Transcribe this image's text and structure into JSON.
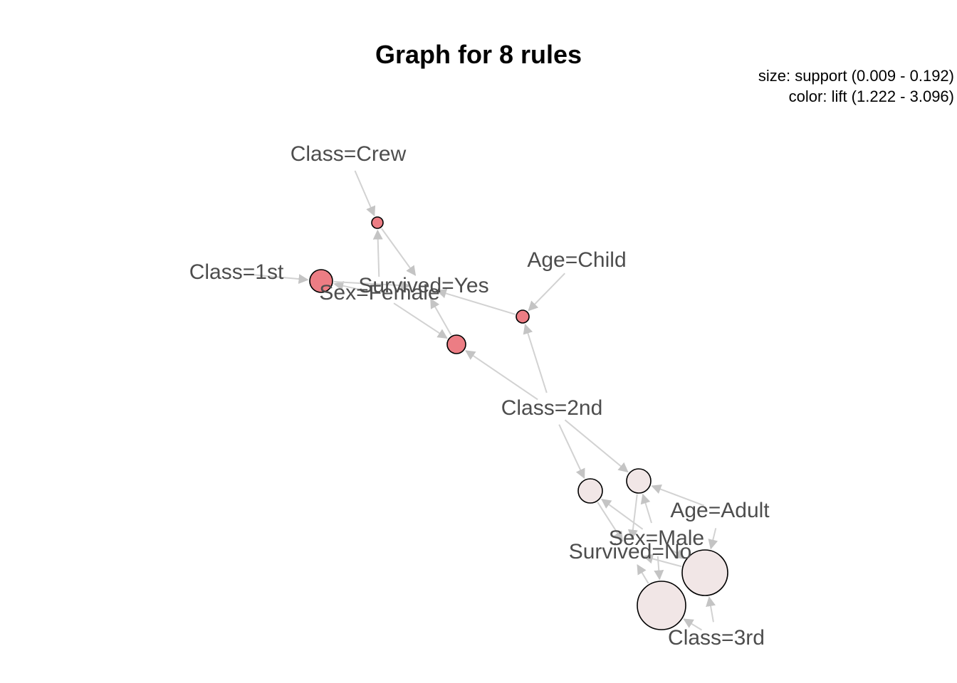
{
  "title": "Graph for 8 rules",
  "legend": {
    "size": "size: support (0.009 - 0.192)",
    "color": "color: lift (1.222 - 3.096)"
  },
  "colors": {
    "edge": "#d2d2d2",
    "label": "#4d4d4d",
    "low_lift": "#f1e6e6",
    "high_lift": "#ec7d84"
  },
  "items": [
    {
      "id": "crew",
      "label": "Class=Crew"
    },
    {
      "id": "first",
      "label": "Class=1st"
    },
    {
      "id": "survived_yes",
      "label": "Survived=Yes"
    },
    {
      "id": "sex_female",
      "label": "Sex=Female"
    },
    {
      "id": "age_child",
      "label": "Age=Child"
    },
    {
      "id": "second",
      "label": "Class=2nd"
    },
    {
      "id": "age_adult",
      "label": "Age=Adult"
    },
    {
      "id": "sex_male",
      "label": "Sex=Male"
    },
    {
      "id": "survived_no",
      "label": "Survived=No"
    },
    {
      "id": "third",
      "label": "Class=3rd"
    }
  ],
  "rules": [
    {
      "id": "r1",
      "lhs": [
        "crew",
        "sex_female"
      ],
      "rhs": "survived_yes",
      "level": "high"
    },
    {
      "id": "r2",
      "lhs": [
        "first",
        "sex_female"
      ],
      "rhs": "survived_yes",
      "level": "high"
    },
    {
      "id": "r3",
      "lhs": [
        "second",
        "sex_female"
      ],
      "rhs": "survived_yes",
      "level": "high"
    },
    {
      "id": "r4",
      "lhs": [
        "second",
        "age_child"
      ],
      "rhs": "survived_yes",
      "level": "high"
    },
    {
      "id": "r5",
      "lhs": [
        "second",
        "sex_male"
      ],
      "rhs": "survived_no",
      "level": "low"
    },
    {
      "id": "r6",
      "lhs": [
        "second",
        "age_adult",
        "sex_male"
      ],
      "rhs": "survived_no",
      "level": "low"
    },
    {
      "id": "r7",
      "lhs": [
        "third",
        "age_adult",
        "sex_male"
      ],
      "rhs": "survived_no",
      "level": "low"
    },
    {
      "id": "r8",
      "lhs": [
        "third",
        "sex_male"
      ],
      "rhs": "survived_no",
      "level": "low"
    }
  ]
}
